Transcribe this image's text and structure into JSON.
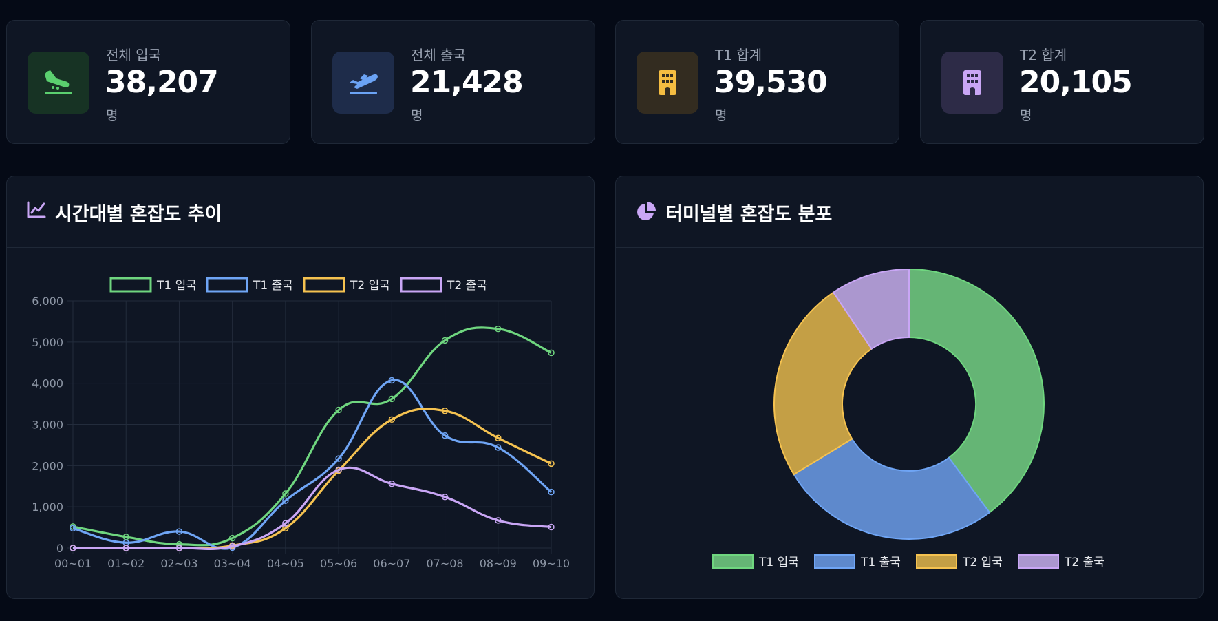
{
  "stats": [
    {
      "label": "전체 입국",
      "value": "38,207",
      "unit": "명",
      "icon": "airplane-landing-icon",
      "color": "#5bd06f",
      "bg": "#173324"
    },
    {
      "label": "전체 출국",
      "value": "21,428",
      "unit": "명",
      "icon": "airplane-takeoff-icon",
      "color": "#6ba3f5",
      "bg": "#1e2c4a"
    },
    {
      "label": "T1 합계",
      "value": "39,530",
      "unit": "명",
      "icon": "building-icon",
      "color": "#f5bd41",
      "bg": "#332c20"
    },
    {
      "label": "T2 합계",
      "value": "20,105",
      "unit": "명",
      "icon": "building-icon",
      "color": "#c9a6f5",
      "bg": "#2d2b47"
    }
  ],
  "line_panel": {
    "title": "시간대별 혼잡도 추이",
    "icon": "line-chart-icon",
    "icon_color": "#c9a6f5"
  },
  "donut_panel": {
    "title": "터미널별 혼잡도 분포",
    "icon": "pie-chart-icon",
    "icon_color": "#c9a6f5"
  },
  "chart_data": [
    {
      "type": "line",
      "categories": [
        "00~01",
        "01~02",
        "02~03",
        "03~04",
        "04~05",
        "05~06",
        "06~07",
        "07~08",
        "08~09",
        "09~10"
      ],
      "ylim": [
        0,
        6000
      ],
      "yticks": [
        "0",
        "1,000",
        "2,000",
        "3,000",
        "4,000",
        "5,000",
        "6,000"
      ],
      "legend_position": "top",
      "grid": true,
      "series": [
        {
          "name": "T1 입국",
          "color": "#6fd67f",
          "values": [
            520,
            270,
            90,
            240,
            1320,
            3350,
            3620,
            5040,
            5320,
            4740
          ]
        },
        {
          "name": "T1 출국",
          "color": "#6fa5f5",
          "values": [
            480,
            130,
            400,
            10,
            1150,
            2170,
            4070,
            2730,
            2440,
            1360
          ]
        },
        {
          "name": "T2 입국",
          "color": "#f5c250",
          "values": [
            0,
            0,
            0,
            60,
            480,
            1880,
            3120,
            3330,
            2670,
            2050
          ]
        },
        {
          "name": "T2 출국",
          "color": "#c9a6f5",
          "values": [
            0,
            0,
            0,
            40,
            600,
            1900,
            1560,
            1240,
            670,
            510
          ]
        }
      ]
    },
    {
      "type": "pie",
      "labels": [
        "T1 입국",
        "T1 출국",
        "T2 입국",
        "T2 출국"
      ],
      "values": [
        23750,
        15780,
        14460,
        5650
      ],
      "colors": [
        "#65b575",
        "#5e89cc",
        "#c49f45",
        "#ab97cf"
      ],
      "borders": [
        "#6fd67f",
        "#6fa5f5",
        "#f5c250",
        "#c9a6f5"
      ],
      "legend_position": "bottom"
    }
  ]
}
